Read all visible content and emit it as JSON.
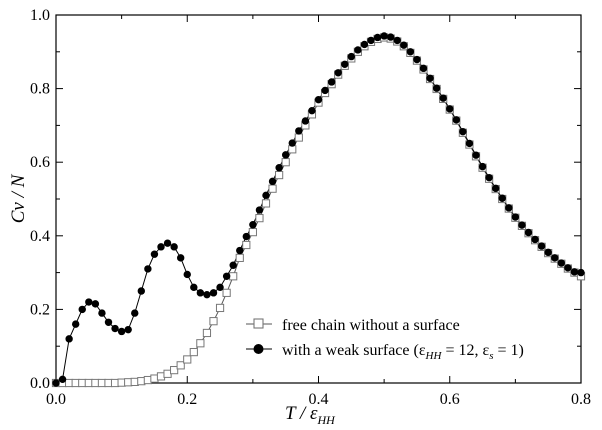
{
  "chart_data": {
    "type": "line",
    "xlim": [
      0.0,
      0.8
    ],
    "ylim": [
      0.0,
      1.0
    ],
    "x_ticks": [
      "0.0",
      "0.2",
      "0.4",
      "0.6",
      "0.8"
    ],
    "y_ticks": [
      "0.0",
      "0.2",
      "0.4",
      "0.6",
      "0.8",
      "1.0"
    ],
    "grid": false,
    "legend_placement": "lower-right",
    "xlabel": {
      "main": "T / ε",
      "sub": "HH"
    },
    "ylabel": "Cv / N",
    "series": [
      {
        "name": "free chain without a surface",
        "marker": "open-square",
        "color": "#888888",
        "x": [
          0.0,
          0.01,
          0.02,
          0.03,
          0.04,
          0.05,
          0.06,
          0.07,
          0.08,
          0.09,
          0.1,
          0.11,
          0.12,
          0.13,
          0.14,
          0.15,
          0.16,
          0.17,
          0.18,
          0.19,
          0.2,
          0.21,
          0.22,
          0.23,
          0.24,
          0.25,
          0.26,
          0.27,
          0.28,
          0.29,
          0.3,
          0.31,
          0.32,
          0.33,
          0.34,
          0.35,
          0.36,
          0.37,
          0.38,
          0.39,
          0.4,
          0.41,
          0.42,
          0.43,
          0.44,
          0.45,
          0.46,
          0.47,
          0.48,
          0.49,
          0.5,
          0.51,
          0.52,
          0.53,
          0.54,
          0.55,
          0.56,
          0.57,
          0.58,
          0.59,
          0.6,
          0.61,
          0.62,
          0.63,
          0.64,
          0.65,
          0.66,
          0.67,
          0.68,
          0.69,
          0.7,
          0.71,
          0.72,
          0.73,
          0.74,
          0.75,
          0.76,
          0.77,
          0.78,
          0.79,
          0.8
        ],
        "values": [
          0.0,
          0.0,
          0.0,
          0.0,
          0.0,
          0.0,
          0.0,
          0.0,
          0.0,
          0.0,
          0.001,
          0.002,
          0.003,
          0.005,
          0.008,
          0.012,
          0.018,
          0.025,
          0.035,
          0.048,
          0.064,
          0.084,
          0.108,
          0.136,
          0.168,
          0.204,
          0.245,
          0.29,
          0.34,
          0.375,
          0.41,
          0.448,
          0.488,
          0.528,
          0.565,
          0.6,
          0.635,
          0.667,
          0.7,
          0.73,
          0.762,
          0.788,
          0.812,
          0.838,
          0.862,
          0.882,
          0.9,
          0.915,
          0.927,
          0.935,
          0.939,
          0.936,
          0.928,
          0.915,
          0.897,
          0.876,
          0.852,
          0.826,
          0.799,
          0.772,
          0.743,
          0.713,
          0.68,
          0.648,
          0.616,
          0.585,
          0.555,
          0.527,
          0.5,
          0.474,
          0.449,
          0.427,
          0.407,
          0.388,
          0.37,
          0.353,
          0.338,
          0.324,
          0.311,
          0.3,
          0.29
        ]
      },
      {
        "name": "with a weak surface (ε",
        "name_sub": "HH",
        "name_mid": " = 12, ε",
        "name_sub2": "s",
        "name_tail": " = 1)",
        "marker": "filled-circle",
        "color": "#000000",
        "x": [
          0.0,
          0.01,
          0.02,
          0.03,
          0.04,
          0.05,
          0.06,
          0.07,
          0.08,
          0.09,
          0.1,
          0.11,
          0.12,
          0.13,
          0.14,
          0.15,
          0.16,
          0.17,
          0.18,
          0.19,
          0.2,
          0.21,
          0.22,
          0.23,
          0.24,
          0.25,
          0.26,
          0.27,
          0.28,
          0.29,
          0.3,
          0.31,
          0.32,
          0.33,
          0.34,
          0.35,
          0.36,
          0.37,
          0.38,
          0.39,
          0.4,
          0.41,
          0.42,
          0.43,
          0.44,
          0.45,
          0.46,
          0.47,
          0.48,
          0.49,
          0.5,
          0.51,
          0.52,
          0.53,
          0.54,
          0.55,
          0.56,
          0.57,
          0.58,
          0.59,
          0.6,
          0.61,
          0.62,
          0.63,
          0.64,
          0.65,
          0.66,
          0.67,
          0.68,
          0.69,
          0.7,
          0.71,
          0.72,
          0.73,
          0.74,
          0.75,
          0.76,
          0.77,
          0.78,
          0.79,
          0.8
        ],
        "values": [
          0.0,
          0.01,
          0.12,
          0.16,
          0.2,
          0.22,
          0.215,
          0.19,
          0.165,
          0.148,
          0.14,
          0.145,
          0.19,
          0.25,
          0.31,
          0.35,
          0.37,
          0.38,
          0.37,
          0.34,
          0.295,
          0.26,
          0.245,
          0.24,
          0.245,
          0.26,
          0.29,
          0.32,
          0.36,
          0.398,
          0.43,
          0.47,
          0.51,
          0.548,
          0.585,
          0.62,
          0.652,
          0.685,
          0.712,
          0.74,
          0.77,
          0.795,
          0.818,
          0.843,
          0.866,
          0.887,
          0.905,
          0.92,
          0.931,
          0.939,
          0.943,
          0.94,
          0.931,
          0.918,
          0.9,
          0.879,
          0.855,
          0.828,
          0.801,
          0.774,
          0.745,
          0.715,
          0.683,
          0.651,
          0.619,
          0.588,
          0.558,
          0.529,
          0.502,
          0.476,
          0.451,
          0.429,
          0.409,
          0.39,
          0.372,
          0.355,
          0.34,
          0.326,
          0.313,
          0.302,
          0.3
        ]
      }
    ]
  }
}
